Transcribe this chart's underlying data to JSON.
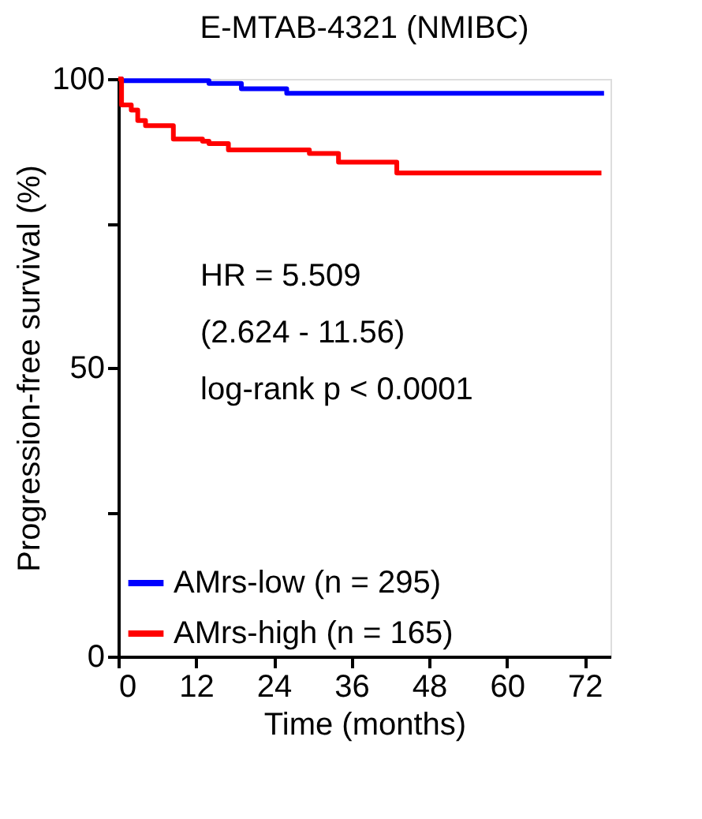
{
  "chart_data": {
    "type": "step",
    "title": "E-MTAB-4321 (NMIBC)",
    "xlabel": "Time (months)",
    "ylabel": "Progression-free survival (%)",
    "xlim": [
      0,
      76
    ],
    "xticks": [
      0,
      12,
      24,
      36,
      48,
      60,
      72
    ],
    "ylim": [
      0,
      100
    ],
    "yticks": [
      0,
      {
        "value": 25,
        "label": null
      },
      50,
      {
        "value": 75,
        "label": null
      },
      100
    ],
    "grid": false,
    "legend": "bottom left",
    "annotations": [
      "HR = 5.509",
      "(2.624 - 11.56)",
      "log-rank p < 0.0001"
    ],
    "series": [
      {
        "name": "AMrs-low (n = 295)",
        "color": "#0000ff",
        "x": [
          0,
          0.5,
          14,
          19,
          26,
          75
        ],
        "values": [
          100,
          99.7,
          99.2,
          98.3,
          97.5,
          97.5
        ]
      },
      {
        "name": "AMrs-high (n = 165)",
        "color": "#ff0000",
        "x": [
          0,
          0.5,
          2,
          3,
          4.2,
          8.5,
          13,
          14,
          17,
          29.5,
          34,
          43,
          74.6
        ],
        "values": [
          100,
          95.5,
          94.6,
          92.8,
          91.9,
          89.6,
          89.2,
          88.8,
          87.7,
          87.1,
          85.6,
          83.7,
          83.7
        ]
      }
    ]
  }
}
